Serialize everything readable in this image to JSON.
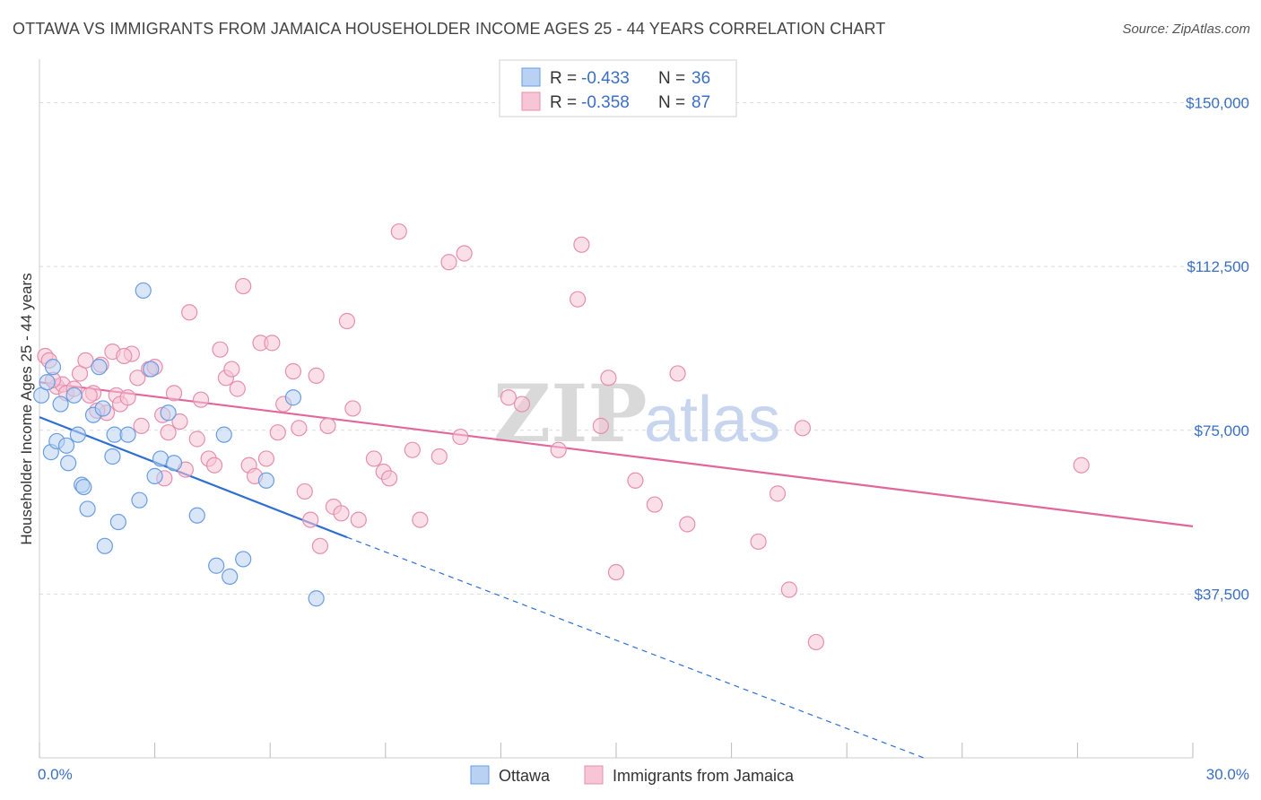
{
  "title": "OTTAWA VS IMMIGRANTS FROM JAMAICA HOUSEHOLDER INCOME AGES 25 - 44 YEARS CORRELATION CHART",
  "source": "Source: ZipAtlas.com",
  "watermark": {
    "zip": "ZIP",
    "atlas": "atlas"
  },
  "legend": {
    "items": [
      {
        "r_label": "R = ",
        "r_value": "-0.433",
        "n_label": "N = ",
        "n_value": "36"
      },
      {
        "r_label": "R = ",
        "r_value": "-0.358",
        "n_label": "N = ",
        "n_value": "87"
      }
    ]
  },
  "bottom_legend": [
    "Ottawa",
    "Immigrants from Jamaica"
  ],
  "colors": {
    "blue": "#6a9de0",
    "blue_fill": "#b9d1f3",
    "blue_line": "#2f6fcf",
    "pink": "#e58fae",
    "pink_fill": "#f8c5d6",
    "pink_line": "#e0679a",
    "tick_text": "#3a6fc4"
  },
  "chart_data": {
    "type": "scatter",
    "xlabel": "",
    "ylabel": "Householder Income Ages 25 - 44 years",
    "xlim": [
      0,
      30
    ],
    "ylim": [
      0,
      157500
    ],
    "x_tick_labels": [
      "0.0%",
      "30.0%"
    ],
    "y_ticks": [
      37500,
      75000,
      112500,
      150000
    ],
    "y_tick_labels": [
      "$37,500",
      "$75,000",
      "$112,500",
      "$150,000"
    ],
    "grid": true,
    "legend_position": "top-center",
    "series": [
      {
        "name": "Ottawa",
        "color": "#6a9de0",
        "points": [
          [
            0.05,
            83000
          ],
          [
            0.2,
            86000
          ],
          [
            0.35,
            89500
          ],
          [
            0.55,
            81000
          ],
          [
            0.3,
            70000
          ],
          [
            0.45,
            72500
          ],
          [
            0.7,
            71500
          ],
          [
            0.75,
            67500
          ],
          [
            1.0,
            74000
          ],
          [
            1.1,
            62500
          ],
          [
            1.15,
            62000
          ],
          [
            1.25,
            57000
          ],
          [
            1.4,
            78500
          ],
          [
            1.55,
            89500
          ],
          [
            1.65,
            80000
          ],
          [
            1.7,
            48500
          ],
          [
            1.9,
            69000
          ],
          [
            1.95,
            74000
          ],
          [
            2.05,
            54000
          ],
          [
            2.3,
            74000
          ],
          [
            2.6,
            59000
          ],
          [
            2.7,
            107000
          ],
          [
            2.9,
            89000
          ],
          [
            3.0,
            64500
          ],
          [
            3.15,
            68500
          ],
          [
            3.35,
            79000
          ],
          [
            3.5,
            67500
          ],
          [
            4.1,
            55500
          ],
          [
            4.6,
            44000
          ],
          [
            4.8,
            74000
          ],
          [
            4.95,
            41500
          ],
          [
            5.3,
            45500
          ],
          [
            5.9,
            63500
          ],
          [
            6.6,
            82500
          ],
          [
            7.2,
            36500
          ],
          [
            0.9,
            83000
          ]
        ]
      },
      {
        "name": "Immigrants from Jamaica",
        "color": "#e58fae",
        "points": [
          [
            0.15,
            92000
          ],
          [
            0.25,
            91000
          ],
          [
            0.45,
            85000
          ],
          [
            0.6,
            85500
          ],
          [
            0.7,
            83500
          ],
          [
            0.9,
            84500
          ],
          [
            1.05,
            88000
          ],
          [
            1.2,
            91000
          ],
          [
            1.4,
            83500
          ],
          [
            1.6,
            90000
          ],
          [
            1.75,
            79000
          ],
          [
            1.9,
            93000
          ],
          [
            2.0,
            83000
          ],
          [
            2.1,
            81000
          ],
          [
            2.3,
            82500
          ],
          [
            2.4,
            92500
          ],
          [
            2.55,
            87000
          ],
          [
            2.65,
            76000
          ],
          [
            2.85,
            89000
          ],
          [
            3.0,
            89500
          ],
          [
            3.2,
            78500
          ],
          [
            3.25,
            64000
          ],
          [
            3.35,
            74500
          ],
          [
            3.5,
            83500
          ],
          [
            3.65,
            77000
          ],
          [
            3.8,
            66000
          ],
          [
            3.9,
            102000
          ],
          [
            4.1,
            73000
          ],
          [
            4.2,
            82000
          ],
          [
            4.4,
            68500
          ],
          [
            4.55,
            67000
          ],
          [
            4.7,
            93500
          ],
          [
            4.85,
            87000
          ],
          [
            5.0,
            89000
          ],
          [
            5.15,
            84500
          ],
          [
            5.3,
            108000
          ],
          [
            5.45,
            67000
          ],
          [
            5.6,
            64500
          ],
          [
            5.75,
            95000
          ],
          [
            5.9,
            68500
          ],
          [
            6.05,
            95000
          ],
          [
            6.2,
            74500
          ],
          [
            6.35,
            81000
          ],
          [
            6.6,
            88500
          ],
          [
            6.75,
            75500
          ],
          [
            6.9,
            61000
          ],
          [
            7.05,
            54500
          ],
          [
            7.2,
            87500
          ],
          [
            7.3,
            48500
          ],
          [
            7.5,
            76000
          ],
          [
            7.65,
            57500
          ],
          [
            7.85,
            56000
          ],
          [
            8.0,
            100000
          ],
          [
            8.15,
            80000
          ],
          [
            8.3,
            54500
          ],
          [
            8.7,
            68500
          ],
          [
            8.95,
            65500
          ],
          [
            9.1,
            64000
          ],
          [
            9.35,
            120500
          ],
          [
            9.7,
            70500
          ],
          [
            9.9,
            54500
          ],
          [
            10.4,
            69000
          ],
          [
            10.65,
            113500
          ],
          [
            10.95,
            73500
          ],
          [
            11.05,
            115500
          ],
          [
            12.2,
            82500
          ],
          [
            12.55,
            81000
          ],
          [
            13.5,
            70500
          ],
          [
            14.0,
            105000
          ],
          [
            14.1,
            117500
          ],
          [
            14.6,
            76000
          ],
          [
            14.8,
            87000
          ],
          [
            15.0,
            42500
          ],
          [
            15.5,
            63500
          ],
          [
            16.0,
            58000
          ],
          [
            16.6,
            88000
          ],
          [
            16.85,
            53500
          ],
          [
            18.7,
            49500
          ],
          [
            19.2,
            60500
          ],
          [
            19.5,
            38500
          ],
          [
            19.85,
            75500
          ],
          [
            20.2,
            26500
          ],
          [
            27.1,
            67000
          ],
          [
            0.35,
            86500
          ],
          [
            1.3,
            83000
          ],
          [
            2.2,
            92000
          ],
          [
            1.5,
            79500
          ]
        ]
      }
    ],
    "trendlines": [
      {
        "series": "Ottawa",
        "x": [
          0,
          8.0
        ],
        "y": [
          78000,
          50500
        ],
        "dashed_extension_to": [
          23.0,
          0
        ]
      },
      {
        "series": "Immigrants from Jamaica",
        "x": [
          0,
          30
        ],
        "y": [
          86000,
          53000
        ]
      }
    ]
  }
}
